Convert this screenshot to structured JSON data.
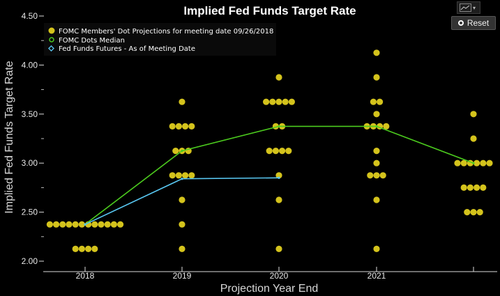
{
  "chart_data": {
    "type": "scatter",
    "title": "Implied Fed Funds Target Rate",
    "xlabel": "Projection Year End",
    "ylabel": "Implied Fed Funds Target Rate",
    "categories": [
      "2018",
      "2019",
      "2020",
      "2021",
      ""
    ],
    "ylim": [
      2.0,
      4.5
    ],
    "yticks": [
      "2.00",
      "2.50",
      "3.00",
      "3.50",
      "4.00",
      "4.50"
    ],
    "grid": false,
    "legend_position": "top-left",
    "series": [
      {
        "name": "FOMC Members' Dot Projections for meeting date 09/26/2018",
        "kind": "dots",
        "color": "#d4c31c",
        "groups": [
          {
            "x": "2018",
            "levels": [
              {
                "y": 2.375,
                "count": 12
              },
              {
                "y": 2.125,
                "count": 4
              }
            ]
          },
          {
            "x": "2019",
            "levels": [
              {
                "y": 3.625,
                "count": 1
              },
              {
                "y": 3.375,
                "count": 4
              },
              {
                "y": 3.125,
                "count": 3
              },
              {
                "y": 2.875,
                "count": 4
              },
              {
                "y": 2.625,
                "count": 1
              },
              {
                "y": 2.375,
                "count": 1
              },
              {
                "y": 2.125,
                "count": 1
              }
            ]
          },
          {
            "x": "2020",
            "levels": [
              {
                "y": 3.875,
                "count": 1
              },
              {
                "y": 3.625,
                "count": 5
              },
              {
                "y": 3.375,
                "count": 2
              },
              {
                "y": 3.125,
                "count": 4
              },
              {
                "y": 2.875,
                "count": 1
              },
              {
                "y": 2.625,
                "count": 1
              },
              {
                "y": 2.125,
                "count": 1
              }
            ]
          },
          {
            "x": "2021",
            "levels": [
              {
                "y": 4.125,
                "count": 1
              },
              {
                "y": 3.875,
                "count": 1
              },
              {
                "y": 3.625,
                "count": 2
              },
              {
                "y": 3.5,
                "count": 1
              },
              {
                "y": 3.375,
                "count": 4
              },
              {
                "y": 3.125,
                "count": 1
              },
              {
                "y": 3.0,
                "count": 1
              },
              {
                "y": 2.875,
                "count": 3
              },
              {
                "y": 2.625,
                "count": 1
              },
              {
                "y": 2.125,
                "count": 1
              }
            ]
          },
          {
            "x": "",
            "levels": [
              {
                "y": 3.5,
                "count": 1
              },
              {
                "y": 3.25,
                "count": 1
              },
              {
                "y": 3.0,
                "count": 6
              },
              {
                "y": 2.75,
                "count": 4
              },
              {
                "y": 2.5,
                "count": 3
              }
            ]
          }
        ]
      },
      {
        "name": "FOMC Dots Median",
        "kind": "line",
        "color": "#4ccc1e",
        "x": [
          "2018",
          "2019",
          "2020",
          "2021",
          ""
        ],
        "y": [
          2.375,
          3.125,
          3.375,
          3.375,
          3.0
        ]
      },
      {
        "name": "Fed Funds Futures - As of Meeting Date",
        "kind": "line",
        "color": "#58c6f0",
        "x": [
          "2018",
          "2019",
          "2020"
        ],
        "y": [
          2.375,
          2.84,
          2.85
        ]
      }
    ]
  },
  "controls": {
    "reset_label": "Reset",
    "menu_icon": "line-chart-icon",
    "menu_chevron": "▾"
  }
}
